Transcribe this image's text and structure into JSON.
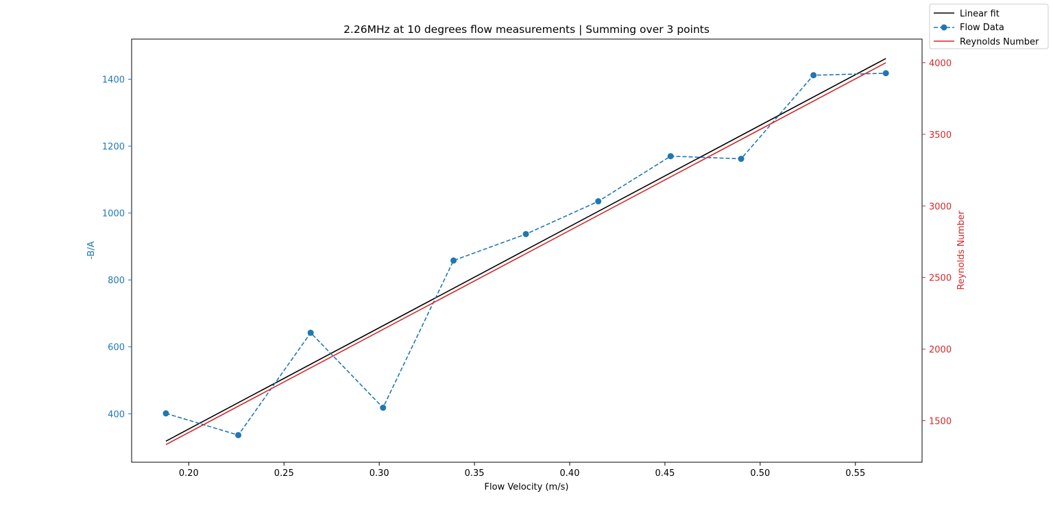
{
  "chart_data": {
    "type": "line",
    "title": "2.26MHz at 10 degrees flow measurements | Summing over 3 points",
    "xlabel": "Flow Velocity (m/s)",
    "ylabel": "-B/A",
    "y2label": "Reynolds Number",
    "xlim": [
      0.17,
      0.585
    ],
    "ylim": [
      255,
      1520
    ],
    "y2lim": [
      1210,
      4165
    ],
    "x_ticks": [
      0.2,
      0.25,
      0.3,
      0.35,
      0.4,
      0.45,
      0.5,
      0.55
    ],
    "x_tick_labels": [
      "0.20",
      "0.25",
      "0.30",
      "0.35",
      "0.40",
      "0.45",
      "0.50",
      "0.55"
    ],
    "y_ticks": [
      400,
      600,
      800,
      1000,
      1200,
      1400
    ],
    "y_tick_labels": [
      "400",
      "600",
      "800",
      "1000",
      "1200",
      "1400"
    ],
    "y2_ticks": [
      1500,
      2000,
      2500,
      3000,
      3500,
      4000
    ],
    "y2_tick_labels": [
      "1500",
      "2000",
      "2500",
      "3000",
      "3500",
      "4000"
    ],
    "grid": false,
    "legend_position": "top-right",
    "colors": {
      "flow": "#1f77b4",
      "reynolds": "#d62728",
      "fit": "#000000",
      "axis": "#000000"
    },
    "series": [
      {
        "name": "Linear fit",
        "axis": "left",
        "style": "solid",
        "x": [
          0.188,
          0.566
        ],
        "y": [
          318,
          1462
        ]
      },
      {
        "name": "Flow Data",
        "axis": "left",
        "style": "dashed-markers",
        "x": [
          0.188,
          0.226,
          0.264,
          0.302,
          0.339,
          0.377,
          0.415,
          0.453,
          0.49,
          0.528,
          0.566
        ],
        "y": [
          401,
          336,
          642,
          418,
          858,
          937,
          1035,
          1170,
          1162,
          1412,
          1418
        ]
      },
      {
        "name": "Reynolds Number",
        "axis": "right",
        "style": "solid",
        "x": [
          0.188,
          0.566
        ],
        "y": [
          1333,
          4000
        ]
      }
    ]
  }
}
